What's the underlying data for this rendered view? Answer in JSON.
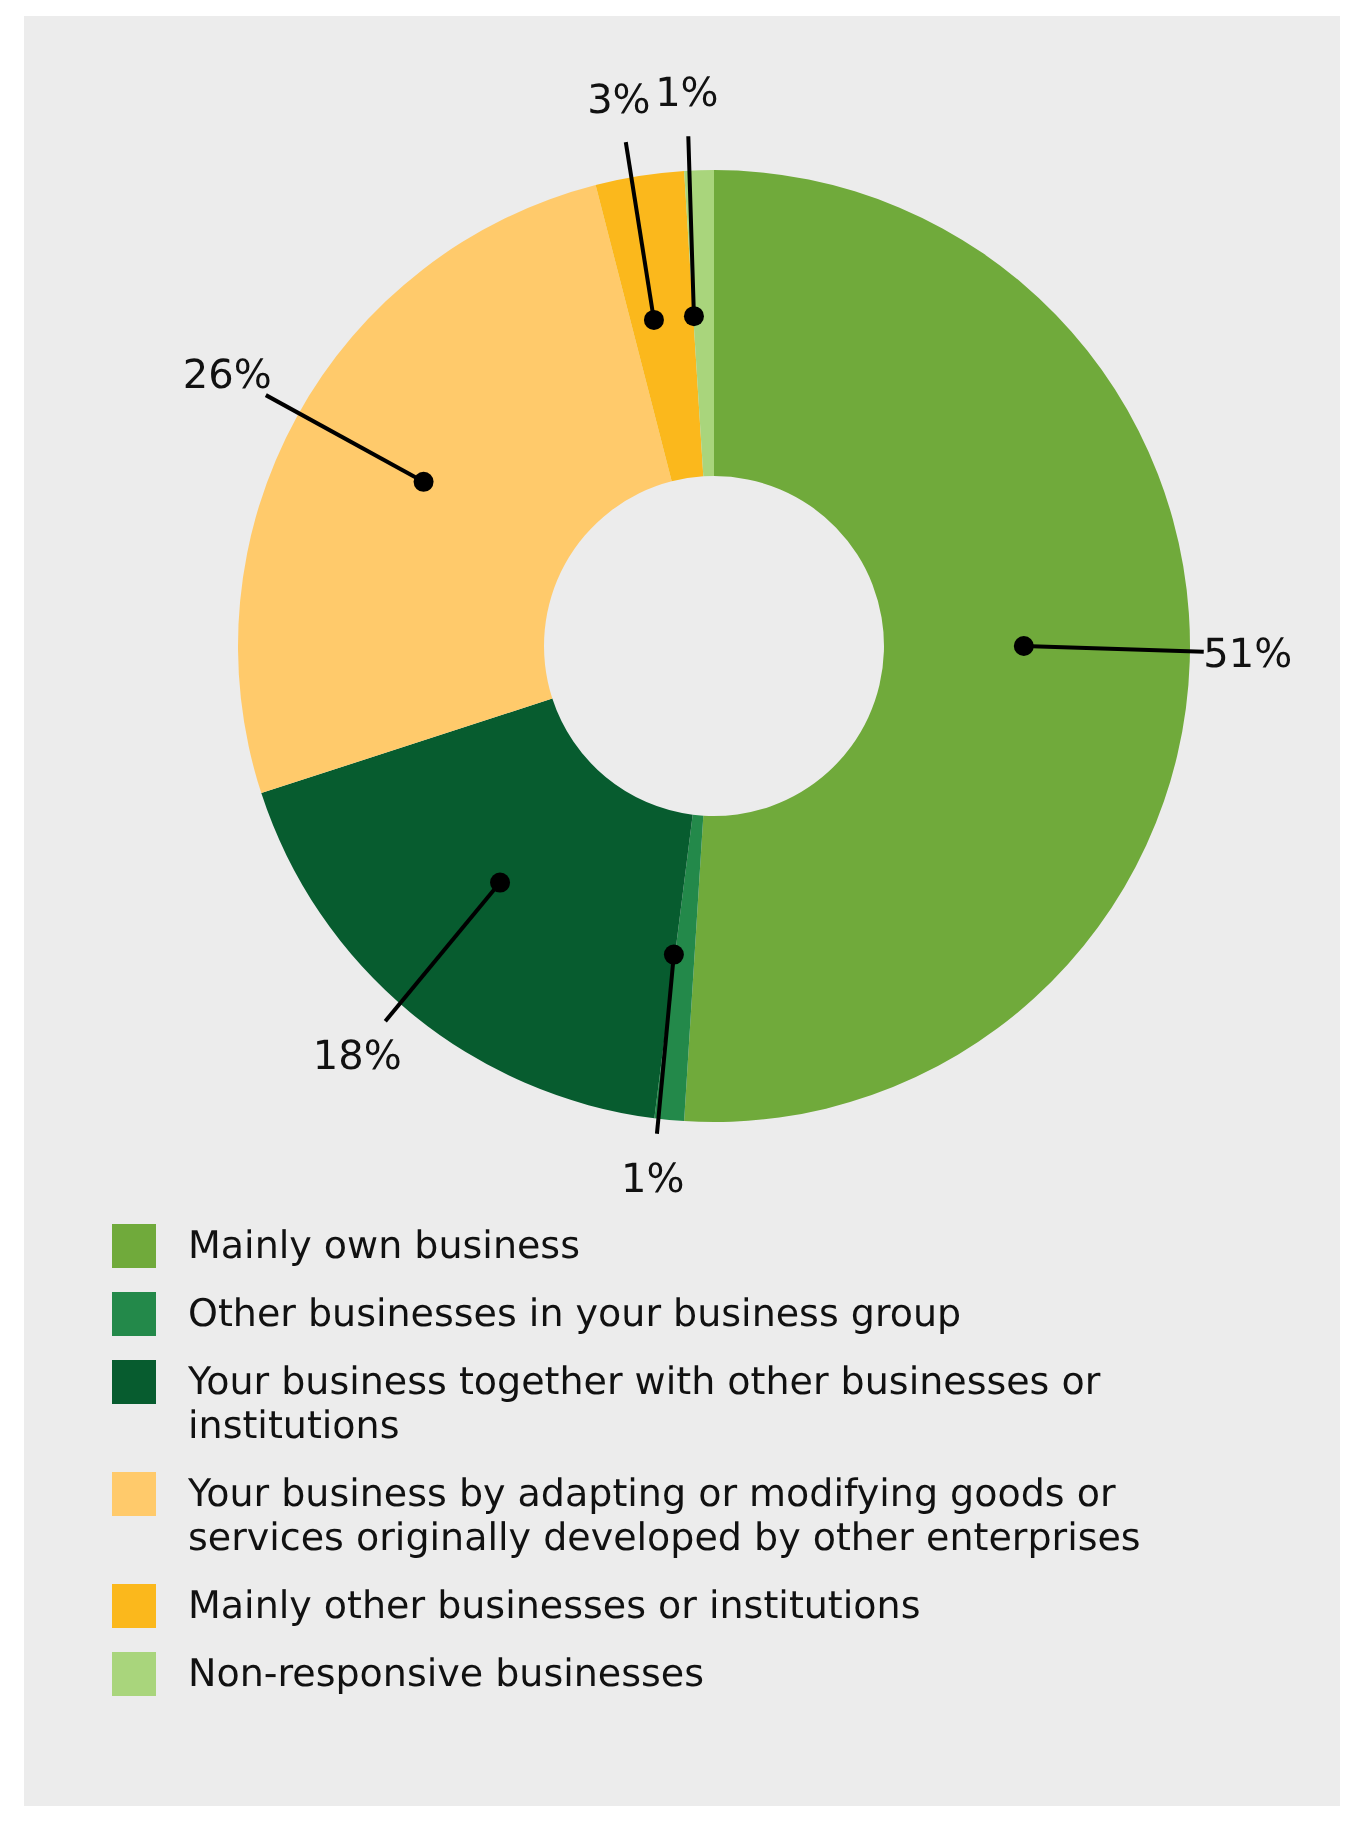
{
  "chart_data": {
    "type": "donut",
    "categories": [
      "Mainly own business",
      "Other businesses in your business group",
      "Your business together with other businesses or institutions",
      "Your business by adapting or modifying goods or services originally developed by other enterprises",
      "Mainly other businesses or institutions",
      "Non-responsive businesses"
    ],
    "values": [
      51,
      1,
      18,
      26,
      3,
      1
    ],
    "colors": [
      "#70aa3b",
      "#23894a",
      "#075c2f",
      "#ffca6b",
      "#fbb81c",
      "#a9d57c"
    ],
    "value_labels": [
      "51%",
      "1%",
      "18%",
      "26%",
      "3%",
      "1%"
    ],
    "legend": "bottom"
  }
}
